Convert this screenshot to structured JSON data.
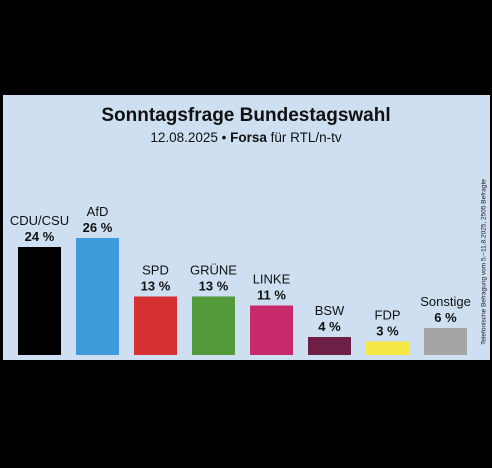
{
  "chart_data": {
    "type": "bar",
    "title": "Sonntagsfrage Bundestagswahl",
    "subtitle": {
      "date": "12.08.2025 •",
      "institute": "Forsa",
      "client": "für RTL/n-tv"
    },
    "note": "Telefonische Befragung vom 5.–11.8.2025, 2505 Befragte",
    "categories": [
      "CDU/CSU",
      "AfD",
      "SPD",
      "GRÜNE",
      "LINKE",
      "BSW",
      "FDP",
      "Sonstige"
    ],
    "values": [
      24,
      26,
      13,
      13,
      11,
      4,
      3,
      6
    ],
    "value_labels": [
      "24 %",
      "26 %",
      "13 %",
      "13 %",
      "11 %",
      "4 %",
      "3 %",
      "6 %"
    ],
    "colors": [
      "#000000",
      "#3f9bdc",
      "#d63131",
      "#529a3a",
      "#c72a6b",
      "#6d1f45",
      "#f6e946",
      "#a5a5a5"
    ],
    "ylim": [
      0,
      26
    ],
    "grid": false,
    "legend": "none"
  }
}
